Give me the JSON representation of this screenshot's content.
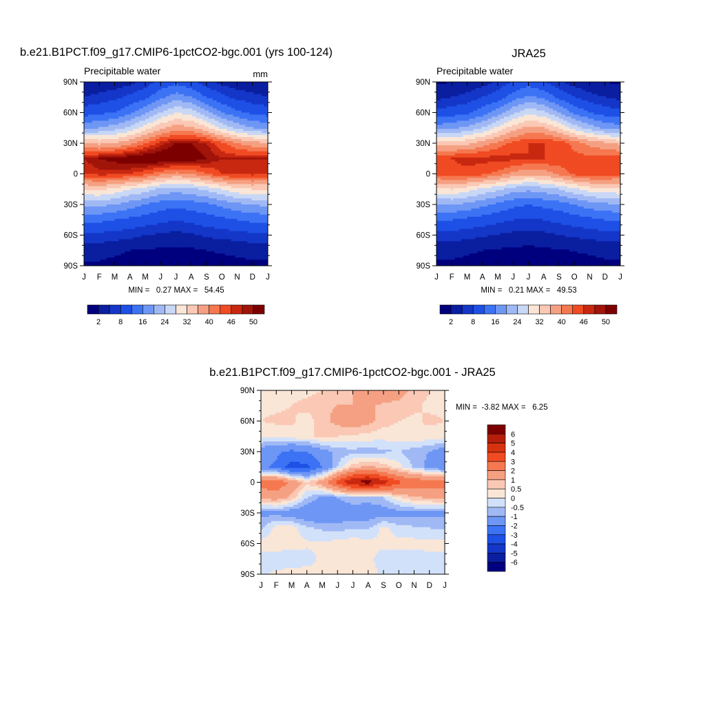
{
  "chart_data": [
    {
      "type": "heatmap",
      "title": "b.e21.B1PCT.f09_g17.CMIP6-1pctCO2-bgc.001 (yrs 100-124)",
      "subtitle_left": "Precipitable water",
      "subtitle_right": "mm",
      "x_ticks": [
        "J",
        "F",
        "M",
        "A",
        "M",
        "J",
        "J",
        "A",
        "S",
        "O",
        "N",
        "D",
        "J"
      ],
      "y_ticks": [
        "90N",
        "60N",
        "30N",
        "0",
        "30S",
        "60S",
        "90S"
      ],
      "y_range": [
        -90,
        90
      ],
      "stats_text": "MIN =   0.27 MAX =   54.45",
      "min": 0.27,
      "max": 54.45,
      "levels": [
        2,
        5,
        8,
        12,
        16,
        20,
        24,
        28,
        32,
        36,
        40,
        43,
        46,
        48,
        50
      ],
      "colorbar_labels": [
        "2",
        "8",
        "16",
        "24",
        "32",
        "40",
        "46",
        "50"
      ],
      "z": [
        [
          2,
          2.5,
          3,
          4,
          6,
          9,
          11,
          9,
          6,
          4,
          3,
          2.5,
          2
        ],
        [
          5,
          6,
          7,
          9,
          11,
          15,
          18,
          16,
          12,
          9,
          7,
          6,
          5
        ],
        [
          10,
          11,
          12,
          15,
          19,
          24,
          28,
          26,
          21,
          16,
          13,
          11,
          10
        ],
        [
          19,
          20,
          22,
          25,
          30,
          35,
          38,
          37,
          33,
          27,
          23,
          20,
          19
        ],
        [
          36,
          35,
          36,
          39,
          43,
          47,
          50,
          50,
          48,
          44,
          40,
          38,
          36
        ],
        [
          48,
          50,
          51,
          52,
          53,
          53,
          53,
          52,
          50,
          48,
          48,
          48,
          48
        ],
        [
          46,
          47,
          47,
          46,
          44,
          41,
          39,
          40,
          43,
          46,
          47,
          47,
          46
        ],
        [
          32,
          33,
          31,
          28,
          26,
          23,
          22,
          23,
          25,
          28,
          31,
          32,
          32
        ],
        [
          21,
          21,
          20,
          18,
          16,
          14,
          13,
          14,
          15,
          17,
          19,
          20,
          21
        ],
        [
          13,
          13,
          12,
          11,
          10,
          9,
          8,
          9,
          10,
          11,
          12,
          13,
          13
        ],
        [
          7,
          7,
          6.5,
          6,
          5,
          4.5,
          4,
          4.5,
          5.5,
          6,
          6.5,
          7,
          7
        ],
        [
          3,
          3,
          2.5,
          2,
          1.8,
          1.5,
          1.3,
          1.5,
          2,
          2.3,
          2.6,
          3,
          3
        ],
        [
          1.5,
          1.5,
          1.2,
          1,
          0.8,
          0.6,
          0.5,
          0.6,
          0.8,
          1,
          1.2,
          1.4,
          1.5
        ]
      ]
    },
    {
      "type": "heatmap",
      "title": "JRA25",
      "subtitle_left": "Precipitable water",
      "subtitle_right": "",
      "x_ticks": [
        "J",
        "F",
        "M",
        "A",
        "M",
        "J",
        "J",
        "A",
        "S",
        "O",
        "N",
        "D",
        "J"
      ],
      "y_ticks": [
        "90N",
        "60N",
        "30N",
        "0",
        "30S",
        "60S",
        "90S"
      ],
      "y_range": [
        -90,
        90
      ],
      "stats_text": "MIN =   0.21 MAX =   49.53",
      "min": 0.21,
      "max": 49.53,
      "levels": [
        2,
        5,
        8,
        12,
        16,
        20,
        24,
        28,
        32,
        36,
        40,
        43,
        46,
        48,
        50
      ],
      "colorbar_labels": [
        "2",
        "8",
        "16",
        "24",
        "32",
        "40",
        "46",
        "50"
      ],
      "z": [
        [
          1.5,
          2,
          2.5,
          3.5,
          5.5,
          8,
          10,
          8,
          5.5,
          3.5,
          2.5,
          2,
          1.5
        ],
        [
          4,
          5,
          6,
          8,
          10,
          14,
          17,
          15,
          11,
          8,
          6,
          5,
          4
        ],
        [
          9,
          10,
          11,
          14,
          18,
          23,
          27,
          25,
          20,
          15,
          12,
          10,
          9
        ],
        [
          18,
          19,
          21,
          24,
          29,
          34,
          37,
          36,
          32,
          26,
          22,
          19,
          18
        ],
        [
          35,
          34,
          35,
          38,
          41,
          44,
          46,
          46,
          45,
          42,
          39,
          37,
          35
        ],
        [
          45,
          46,
          47,
          47,
          47,
          47,
          46,
          46,
          45,
          44,
          44,
          45,
          45
        ],
        [
          44,
          45,
          45,
          44,
          42,
          39,
          37,
          38,
          41,
          44,
          45,
          45,
          44
        ],
        [
          31,
          32,
          30,
          27,
          25,
          22,
          21,
          22,
          24,
          27,
          30,
          31,
          31
        ],
        [
          20,
          20,
          19,
          17,
          15,
          13,
          12,
          13,
          14,
          16,
          18,
          19,
          20
        ],
        [
          12,
          12,
          11,
          10,
          9,
          8,
          7.5,
          8,
          9,
          10,
          11,
          12,
          12
        ],
        [
          6.5,
          6.5,
          6,
          5.5,
          4.8,
          4.2,
          3.8,
          4.2,
          5,
          5.5,
          6,
          6.5,
          6.5
        ],
        [
          2.8,
          2.8,
          2.4,
          2,
          1.7,
          1.4,
          1.2,
          1.4,
          1.8,
          2.1,
          2.4,
          2.8,
          2.8
        ],
        [
          1.4,
          1.4,
          1.1,
          0.9,
          0.7,
          0.5,
          0.4,
          0.5,
          0.7,
          0.9,
          1.1,
          1.3,
          1.4
        ]
      ]
    },
    {
      "type": "heatmap",
      "title": "b.e21.B1PCT.f09_g17.CMIP6-1pctCO2-bgc.001 - JRA25",
      "subtitle_left": "",
      "subtitle_right": "",
      "x_ticks": [
        "J",
        "F",
        "M",
        "A",
        "M",
        "J",
        "J",
        "A",
        "S",
        "O",
        "N",
        "D",
        "J"
      ],
      "y_ticks": [
        "90N",
        "60N",
        "30N",
        "0",
        "30S",
        "60S",
        "90S"
      ],
      "y_range": [
        -90,
        90
      ],
      "stats_text": "MIN =  -3.82 MAX =   6.25",
      "min": -3.82,
      "max": 6.25,
      "levels": [
        -6,
        -5,
        -4,
        -3,
        -2,
        -1,
        -0.5,
        0,
        0.5,
        1,
        2,
        3,
        4,
        5,
        6
      ],
      "colorbar_labels": [
        "6",
        "5",
        "4",
        "3",
        "2",
        "1",
        "0.5",
        "0",
        "-0.5",
        "-1",
        "-2",
        "-3",
        "-4",
        "-5",
        "-6"
      ],
      "z": [
        [
          0.5,
          0.4,
          0.3,
          0.3,
          0.5,
          0.8,
          1,
          1.3,
          1.5,
          1.3,
          0.8,
          0.5,
          0.5
        ],
        [
          0.4,
          0.4,
          0.5,
          0.7,
          0.9,
          1,
          1,
          1.1,
          0.9,
          0.8,
          0.6,
          0.4,
          0.4
        ],
        [
          0.5,
          0.6,
          0.6,
          0.2,
          0.8,
          1.2,
          1.5,
          1.2,
          0.7,
          0.5,
          0.4,
          0.6,
          0.5
        ],
        [
          0.2,
          0.1,
          0.3,
          0.4,
          0.6,
          0.5,
          0.4,
          0.3,
          0.2,
          0.3,
          0.4,
          0.3,
          0.2
        ],
        [
          -1.5,
          -1.8,
          -2.2,
          -2,
          -1.3,
          -0.8,
          -0.7,
          -0.8,
          -0.6,
          -0.5,
          -0.8,
          -1,
          -1.5
        ],
        [
          -1.8,
          -2.2,
          -3.5,
          -3.2,
          -2,
          -0.5,
          0.8,
          1.2,
          0.8,
          0.2,
          -0.6,
          -1.2,
          -1.8
        ],
        [
          2.5,
          2.8,
          1.8,
          0.6,
          1.5,
          3.5,
          5,
          5.5,
          4.5,
          3.2,
          2.8,
          2.6,
          2.5
        ],
        [
          1.2,
          1.4,
          0.8,
          -0.5,
          -1.2,
          -1,
          -0.6,
          -0.8,
          -0.5,
          0.4,
          0.9,
          1.1,
          1.2
        ],
        [
          -1.2,
          -1.2,
          -1.5,
          -1.7,
          -1.8,
          -1.6,
          -1.5,
          -1.4,
          -1.4,
          -1.3,
          -1.2,
          -1.2,
          -1.2
        ],
        [
          -0.6,
          0.2,
          0.3,
          -0.4,
          -0.6,
          -0.7,
          -0.5,
          -0.6,
          0.2,
          -0.3,
          -0.4,
          -0.5,
          -0.6
        ],
        [
          0.2,
          0.3,
          0.2,
          0.1,
          0.1,
          0.2,
          0.3,
          0.2,
          0.1,
          0.2,
          0.2,
          0.2,
          0.2
        ],
        [
          -0.2,
          -0.3,
          -0.3,
          -0.2,
          0.1,
          0.3,
          0.2,
          0.1,
          -0.2,
          -0.3,
          -0.3,
          -0.2,
          -0.2
        ],
        [
          -0.1,
          0.1,
          0.2,
          0.2,
          0.1,
          0.1,
          0.2,
          0.2,
          -0.1,
          -0.2,
          -0.2,
          -0.1,
          -0.1
        ]
      ]
    }
  ],
  "colors": {
    "abs_palette": [
      "#00007f",
      "#0a1ea0",
      "#1437c8",
      "#1e50e6",
      "#3c73f5",
      "#6e96f5",
      "#a0b9f5",
      "#c8d7f5",
      "#fae6d7",
      "#fac8b4",
      "#f5a082",
      "#f57850",
      "#f04b23",
      "#c82810",
      "#a0140a",
      "#7d0000"
    ],
    "diff_palette": [
      "#00007f",
      "#0a1ea0",
      "#1437c8",
      "#1e50e6",
      "#3c73f5",
      "#6e96f5",
      "#a0b9f5",
      "#d2e1fa",
      "#fae6d7",
      "#fac8b4",
      "#f5a082",
      "#f57850",
      "#f04b23",
      "#c82810",
      "#7d0000",
      "#7d0000"
    ]
  }
}
